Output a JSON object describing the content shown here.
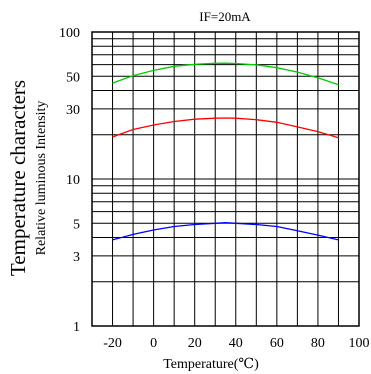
{
  "chart_data": {
    "type": "line",
    "title": "IF=20mA",
    "xlabel": "Temperature(℃)",
    "ylabel": "Temperature characters",
    "ylabel2": "Relative luminous Intensity",
    "xlim": [
      -30,
      100
    ],
    "ylim": [
      1,
      100
    ],
    "y_scale": "log",
    "grid": true,
    "x_ticks": [
      -20,
      0,
      20,
      40,
      60,
      80,
      100
    ],
    "y_ticks": [
      1,
      3,
      5,
      10,
      30,
      50,
      100
    ],
    "series": [
      {
        "color": "#00cc00",
        "x": [
          -20,
          -10,
          0,
          10,
          20,
          30,
          35,
          40,
          50,
          60,
          70,
          80,
          90
        ],
        "y": [
          44.9,
          50.5,
          54.8,
          58.4,
          60.3,
          61.2,
          61.3,
          61.1,
          59.7,
          57.2,
          53.4,
          48.8,
          43.8
        ]
      },
      {
        "color": "#ff0000",
        "x": [
          -20,
          -10,
          0,
          10,
          20,
          30,
          35,
          40,
          50,
          60,
          70,
          80,
          90
        ],
        "y": [
          19.3,
          21.7,
          23.3,
          24.6,
          25.5,
          25.9,
          26.0,
          25.9,
          25.3,
          24.3,
          22.6,
          21.0,
          19.1
        ]
      },
      {
        "color": "#0000ff",
        "x": [
          -20,
          -10,
          0,
          10,
          20,
          30,
          35,
          40,
          50,
          60,
          70,
          80,
          90
        ],
        "y": [
          3.85,
          4.2,
          4.5,
          4.75,
          4.9,
          5.0,
          5.05,
          5.0,
          4.9,
          4.75,
          4.45,
          4.15,
          3.85
        ]
      }
    ]
  }
}
